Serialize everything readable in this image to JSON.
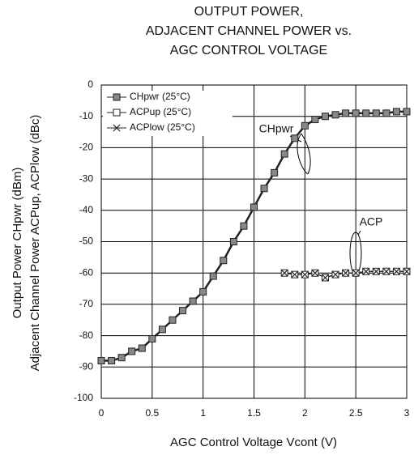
{
  "chart_data": {
    "type": "line",
    "title": [
      "OUTPUT POWER,",
      "ADJACENT CHANNEL POWER  vs.",
      "AGC CONTROL VOLTAGE"
    ],
    "x_label": "AGC Control Voltage  Vcont (V)",
    "y_label": [
      "Output Power  CHpwr (dBm)",
      "Adjacent Channel Power  ACPup, ACPlow (dBc)"
    ],
    "xlim": [
      0,
      3
    ],
    "xticks": [
      0,
      0.5,
      1,
      1.5,
      2,
      2.5,
      3
    ],
    "ylim": [
      -100,
      0
    ],
    "yticks": [
      0,
      -10,
      -20,
      -30,
      -40,
      -50,
      -60,
      -70,
      -80,
      -90,
      -100
    ],
    "grid": true,
    "legend": "upper left",
    "annotations": [
      "CHpwr",
      "ACP"
    ],
    "series": [
      {
        "name": "CHpwr   (25°C)",
        "color": "#222222",
        "marker": "square-filled",
        "x": [
          0,
          0.1,
          0.2,
          0.3,
          0.4,
          0.5,
          0.6,
          0.7,
          0.8,
          0.9,
          1.0,
          1.1,
          1.2,
          1.3,
          1.4,
          1.5,
          1.6,
          1.7,
          1.8,
          1.9,
          2.0,
          2.1,
          2.2,
          2.3,
          2.4,
          2.5,
          2.6,
          2.7,
          2.8,
          2.9,
          3.0
        ],
        "values": [
          -88,
          -88,
          -87,
          -85,
          -84,
          -81,
          -78,
          -75,
          -72,
          -69,
          -66,
          -61,
          -56,
          -50,
          -45,
          -39,
          -33,
          -28,
          -22,
          -17,
          -13,
          -11,
          -10,
          -9.5,
          -9,
          -9,
          -9,
          -9,
          -9,
          -8.5,
          -8.5
        ]
      },
      {
        "name": "ACPup   (25°C)",
        "color": "#222222",
        "marker": "square-open",
        "x": [
          1.8,
          1.9,
          2.0,
          2.1,
          2.2,
          2.3,
          2.4,
          2.5,
          2.6,
          2.7,
          2.8,
          2.9,
          3.0
        ],
        "values": [
          -60,
          -60.5,
          -60.5,
          -60,
          -61.5,
          -60.5,
          -60,
          -60,
          -59.5,
          -59.5,
          -59.5,
          -59.5,
          -59.5
        ]
      },
      {
        "name": "ACPlow  (25°C)",
        "color": "#222222",
        "marker": "x",
        "x": [
          1.8,
          1.9,
          2.0,
          2.1,
          2.2,
          2.3,
          2.4,
          2.5,
          2.6,
          2.7,
          2.8,
          2.9,
          3.0
        ],
        "values": [
          -60,
          -60.5,
          -60.5,
          -60,
          -61.5,
          -60.5,
          -60,
          -60,
          -59.5,
          -59.5,
          -59.5,
          -59.5,
          -59.5
        ]
      }
    ]
  }
}
